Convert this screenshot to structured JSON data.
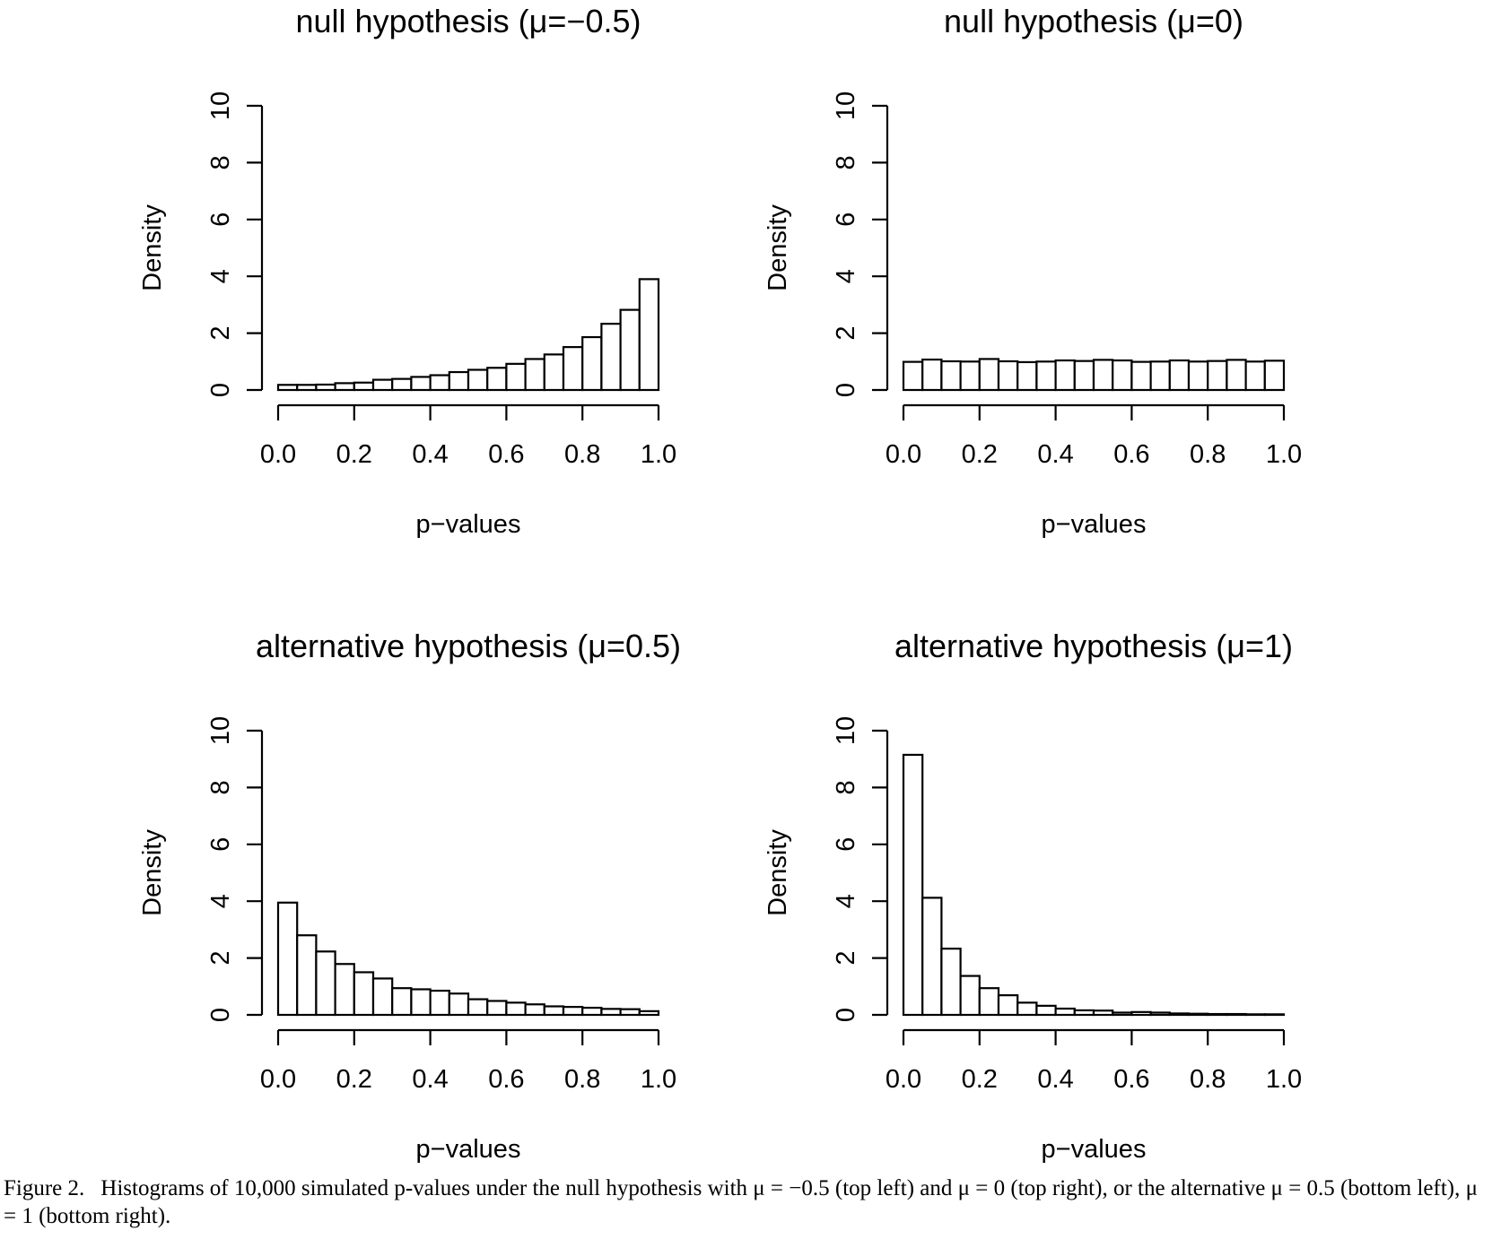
{
  "chart_data": [
    {
      "type": "bar",
      "title": "null hypothesis (μ=−0.5)",
      "xlabel": "p−values",
      "ylabel": "Density",
      "bin_edges": [
        0.0,
        0.05,
        0.1,
        0.15,
        0.2,
        0.25,
        0.3,
        0.35,
        0.4,
        0.45,
        0.5,
        0.55,
        0.6,
        0.65,
        0.7,
        0.75,
        0.8,
        0.85,
        0.9,
        0.95,
        1.0
      ],
      "values": [
        0.18,
        0.18,
        0.19,
        0.24,
        0.26,
        0.36,
        0.39,
        0.46,
        0.52,
        0.63,
        0.71,
        0.78,
        0.92,
        1.09,
        1.25,
        1.51,
        1.86,
        2.33,
        2.82,
        3.9
      ],
      "xlim": [
        0,
        1
      ],
      "ylim": [
        0,
        10
      ],
      "xticks": [
        "0.0",
        "0.2",
        "0.4",
        "0.6",
        "0.8",
        "1.0"
      ],
      "yticks": [
        "0",
        "2",
        "4",
        "6",
        "8",
        "10"
      ]
    },
    {
      "type": "bar",
      "title": "null hypothesis (μ=0)",
      "xlabel": "p−values",
      "ylabel": "Density",
      "bin_edges": [
        0.0,
        0.05,
        0.1,
        0.15,
        0.2,
        0.25,
        0.3,
        0.35,
        0.4,
        0.45,
        0.5,
        0.55,
        0.6,
        0.65,
        0.7,
        0.75,
        0.8,
        0.85,
        0.9,
        0.95,
        1.0
      ],
      "values": [
        0.99,
        1.07,
        1.01,
        1.0,
        1.09,
        1.01,
        0.98,
        1.0,
        1.04,
        1.02,
        1.06,
        1.04,
        0.99,
        1.0,
        1.04,
        1.0,
        1.02,
        1.06,
        1.0,
        1.03
      ],
      "xlim": [
        0,
        1
      ],
      "ylim": [
        0,
        10
      ],
      "xticks": [
        "0.0",
        "0.2",
        "0.4",
        "0.6",
        "0.8",
        "1.0"
      ],
      "yticks": [
        "0",
        "2",
        "4",
        "6",
        "8",
        "10"
      ]
    },
    {
      "type": "bar",
      "title": "alternative hypothesis (μ=0.5)",
      "xlabel": "p−values",
      "ylabel": "Density",
      "bin_edges": [
        0.0,
        0.05,
        0.1,
        0.15,
        0.2,
        0.25,
        0.3,
        0.35,
        0.4,
        0.45,
        0.5,
        0.55,
        0.6,
        0.65,
        0.7,
        0.75,
        0.8,
        0.85,
        0.9,
        0.95,
        1.0
      ],
      "values": [
        3.95,
        2.8,
        2.23,
        1.79,
        1.5,
        1.28,
        0.94,
        0.9,
        0.85,
        0.75,
        0.55,
        0.49,
        0.43,
        0.37,
        0.3,
        0.28,
        0.25,
        0.21,
        0.2,
        0.13
      ],
      "xlim": [
        0,
        1
      ],
      "ylim": [
        0,
        10
      ],
      "xticks": [
        "0.0",
        "0.2",
        "0.4",
        "0.6",
        "0.8",
        "1.0"
      ],
      "yticks": [
        "0",
        "2",
        "4",
        "6",
        "8",
        "10"
      ]
    },
    {
      "type": "bar",
      "title": "alternative hypothesis (μ=1)",
      "xlabel": "p−values",
      "ylabel": "Density",
      "bin_edges": [
        0.0,
        0.05,
        0.1,
        0.15,
        0.2,
        0.25,
        0.3,
        0.35,
        0.4,
        0.45,
        0.5,
        0.55,
        0.6,
        0.65,
        0.7,
        0.75,
        0.8,
        0.85,
        0.9,
        0.95,
        1.0
      ],
      "values": [
        9.15,
        4.12,
        2.33,
        1.37,
        0.94,
        0.69,
        0.43,
        0.32,
        0.22,
        0.16,
        0.15,
        0.08,
        0.1,
        0.08,
        0.05,
        0.04,
        0.03,
        0.03,
        0.02,
        0.02
      ],
      "xlim": [
        0,
        1
      ],
      "ylim": [
        0,
        10
      ],
      "xticks": [
        "0.0",
        "0.2",
        "0.4",
        "0.6",
        "0.8",
        "1.0"
      ],
      "yticks": [
        "0",
        "2",
        "4",
        "6",
        "8",
        "10"
      ]
    }
  ],
  "caption": {
    "label": "Figure 2.",
    "text": "Histograms of 10,000 simulated p-values under the null hypothesis with μ = −0.5 (top left) and μ = 0 (top right), or the alternative μ = 0.5 (bottom left), μ = 1 (bottom right)."
  }
}
